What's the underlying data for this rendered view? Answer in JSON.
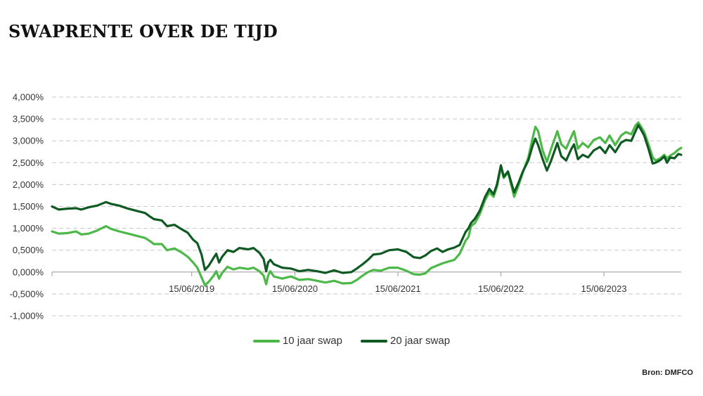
{
  "title": "SWAPRENTE OVER DE TIJD",
  "source": "Bron: DMFCO",
  "colors": {
    "series_10y": "#4cb848",
    "series_20y": "#0f5a22"
  },
  "chart_data": {
    "type": "line",
    "y_tick_labels": [
      "4,000%",
      "3,500%",
      "3,000%",
      "2,500%",
      "2,000%",
      "1,500%",
      "1,000%",
      "0,500%",
      "0,000%",
      "-0,500%",
      "-1,000%"
    ],
    "y_ticks": [
      4,
      3.5,
      3,
      2.5,
      2,
      1.5,
      1,
      0.5,
      0,
      -0.5,
      -1
    ],
    "ylim": [
      -1,
      4
    ],
    "xlim": [
      "2018-02-05",
      "2024-03-15"
    ],
    "x_ticks": [
      "2019-06-15",
      "2020-06-15",
      "2021-06-15",
      "2022-06-15",
      "2023-06-15"
    ],
    "x_tick_labels": [
      "15/06/2019",
      "15/06/2020",
      "15/06/2021",
      "15/06/2022",
      "15/06/2023"
    ],
    "grid": true,
    "legend_position": "bottom",
    "series": [
      {
        "name": "10 jaar swap",
        "points": [
          [
            "2018-02-05",
            0.93
          ],
          [
            "2018-03-01",
            0.88
          ],
          [
            "2018-04-01",
            0.89
          ],
          [
            "2018-05-01",
            0.93
          ],
          [
            "2018-05-20",
            0.86
          ],
          [
            "2018-06-15",
            0.88
          ],
          [
            "2018-07-15",
            0.95
          ],
          [
            "2018-08-15",
            1.05
          ],
          [
            "2018-09-01",
            0.99
          ],
          [
            "2018-10-01",
            0.93
          ],
          [
            "2018-11-01",
            0.88
          ],
          [
            "2018-12-01",
            0.83
          ],
          [
            "2019-01-01",
            0.78
          ],
          [
            "2019-01-20",
            0.7
          ],
          [
            "2019-02-01",
            0.64
          ],
          [
            "2019-03-01",
            0.64
          ],
          [
            "2019-03-20",
            0.5
          ],
          [
            "2019-04-15",
            0.54
          ],
          [
            "2019-05-10",
            0.45
          ],
          [
            "2019-06-01",
            0.35
          ],
          [
            "2019-06-20",
            0.22
          ],
          [
            "2019-07-05",
            0.1
          ],
          [
            "2019-07-20",
            -0.12
          ],
          [
            "2019-08-01",
            -0.3
          ],
          [
            "2019-08-15",
            -0.22
          ],
          [
            "2019-09-01",
            -0.08
          ],
          [
            "2019-09-10",
            0.02
          ],
          [
            "2019-09-20",
            -0.15
          ],
          [
            "2019-10-01",
            -0.02
          ],
          [
            "2019-10-20",
            0.12
          ],
          [
            "2019-11-10",
            0.06
          ],
          [
            "2019-12-01",
            0.1
          ],
          [
            "2020-01-01",
            0.07
          ],
          [
            "2020-01-20",
            0.1
          ],
          [
            "2020-02-10",
            0.02
          ],
          [
            "2020-02-25",
            -0.08
          ],
          [
            "2020-03-05",
            -0.28
          ],
          [
            "2020-03-12",
            -0.08
          ],
          [
            "2020-03-20",
            0.02
          ],
          [
            "2020-04-01",
            -0.1
          ],
          [
            "2020-05-01",
            -0.15
          ],
          [
            "2020-06-01",
            -0.1
          ],
          [
            "2020-07-01",
            -0.18
          ],
          [
            "2020-08-01",
            -0.16
          ],
          [
            "2020-09-01",
            -0.2
          ],
          [
            "2020-10-01",
            -0.24
          ],
          [
            "2020-11-01",
            -0.2
          ],
          [
            "2020-12-01",
            -0.26
          ],
          [
            "2021-01-01",
            -0.25
          ],
          [
            "2021-01-20",
            -0.18
          ],
          [
            "2021-02-10",
            -0.08
          ],
          [
            "2021-03-01",
            0.0
          ],
          [
            "2021-03-20",
            0.05
          ],
          [
            "2021-04-15",
            0.03
          ],
          [
            "2021-05-15",
            0.1
          ],
          [
            "2021-06-15",
            0.1
          ],
          [
            "2021-07-15",
            0.03
          ],
          [
            "2021-08-10",
            -0.05
          ],
          [
            "2021-09-01",
            -0.06
          ],
          [
            "2021-09-20",
            -0.03
          ],
          [
            "2021-10-10",
            0.09
          ],
          [
            "2021-11-01",
            0.15
          ],
          [
            "2021-11-20",
            0.2
          ],
          [
            "2021-12-10",
            0.24
          ],
          [
            "2022-01-01",
            0.28
          ],
          [
            "2022-01-20",
            0.42
          ],
          [
            "2022-02-10",
            0.72
          ],
          [
            "2022-02-20",
            0.8
          ],
          [
            "2022-03-01",
            1.05
          ],
          [
            "2022-03-15",
            1.12
          ],
          [
            "2022-04-01",
            1.32
          ],
          [
            "2022-04-20",
            1.65
          ],
          [
            "2022-05-05",
            1.82
          ],
          [
            "2022-05-20",
            1.72
          ],
          [
            "2022-06-01",
            1.95
          ],
          [
            "2022-06-15",
            2.4
          ],
          [
            "2022-06-25",
            2.15
          ],
          [
            "2022-07-10",
            2.28
          ],
          [
            "2022-08-01",
            1.72
          ],
          [
            "2022-08-15",
            1.95
          ],
          [
            "2022-09-01",
            2.28
          ],
          [
            "2022-09-20",
            2.62
          ],
          [
            "2022-10-05",
            3.05
          ],
          [
            "2022-10-15",
            3.32
          ],
          [
            "2022-10-25",
            3.22
          ],
          [
            "2022-11-10",
            2.78
          ],
          [
            "2022-11-25",
            2.52
          ],
          [
            "2022-12-10",
            2.82
          ],
          [
            "2023-01-01",
            3.22
          ],
          [
            "2023-01-15",
            2.92
          ],
          [
            "2023-02-01",
            2.82
          ],
          [
            "2023-02-20",
            3.1
          ],
          [
            "2023-03-01",
            3.22
          ],
          [
            "2023-03-15",
            2.82
          ],
          [
            "2023-04-01",
            2.95
          ],
          [
            "2023-04-20",
            2.85
          ],
          [
            "2023-05-10",
            3.02
          ],
          [
            "2023-06-01",
            3.08
          ],
          [
            "2023-06-20",
            2.95
          ],
          [
            "2023-07-05",
            3.12
          ],
          [
            "2023-07-25",
            2.9
          ],
          [
            "2023-08-15",
            3.12
          ],
          [
            "2023-09-01",
            3.2
          ],
          [
            "2023-09-20",
            3.15
          ],
          [
            "2023-10-05",
            3.35
          ],
          [
            "2023-10-15",
            3.42
          ],
          [
            "2023-10-25",
            3.32
          ],
          [
            "2023-11-05",
            3.2
          ],
          [
            "2023-11-20",
            2.92
          ],
          [
            "2023-12-05",
            2.62
          ],
          [
            "2023-12-15",
            2.55
          ],
          [
            "2024-01-01",
            2.6
          ],
          [
            "2024-01-15",
            2.68
          ],
          [
            "2024-01-25",
            2.6
          ],
          [
            "2024-02-05",
            2.66
          ],
          [
            "2024-02-20",
            2.72
          ],
          [
            "2024-03-05",
            2.8
          ],
          [
            "2024-03-15",
            2.84
          ]
        ]
      },
      {
        "name": "20 jaar swap",
        "points": [
          [
            "2018-02-05",
            1.5
          ],
          [
            "2018-03-01",
            1.43
          ],
          [
            "2018-04-01",
            1.45
          ],
          [
            "2018-05-01",
            1.46
          ],
          [
            "2018-05-20",
            1.43
          ],
          [
            "2018-06-15",
            1.48
          ],
          [
            "2018-07-15",
            1.52
          ],
          [
            "2018-08-15",
            1.6
          ],
          [
            "2018-09-01",
            1.56
          ],
          [
            "2018-10-01",
            1.52
          ],
          [
            "2018-11-01",
            1.45
          ],
          [
            "2018-12-01",
            1.4
          ],
          [
            "2019-01-01",
            1.35
          ],
          [
            "2019-01-20",
            1.26
          ],
          [
            "2019-02-01",
            1.21
          ],
          [
            "2019-03-01",
            1.18
          ],
          [
            "2019-03-20",
            1.05
          ],
          [
            "2019-04-15",
            1.08
          ],
          [
            "2019-05-10",
            0.98
          ],
          [
            "2019-06-01",
            0.9
          ],
          [
            "2019-06-20",
            0.74
          ],
          [
            "2019-07-05",
            0.66
          ],
          [
            "2019-07-20",
            0.4
          ],
          [
            "2019-08-01",
            0.05
          ],
          [
            "2019-08-15",
            0.15
          ],
          [
            "2019-09-01",
            0.33
          ],
          [
            "2019-09-10",
            0.42
          ],
          [
            "2019-09-20",
            0.22
          ],
          [
            "2019-10-01",
            0.35
          ],
          [
            "2019-10-20",
            0.5
          ],
          [
            "2019-11-10",
            0.46
          ],
          [
            "2019-12-01",
            0.55
          ],
          [
            "2020-01-01",
            0.52
          ],
          [
            "2020-01-20",
            0.55
          ],
          [
            "2020-02-10",
            0.44
          ],
          [
            "2020-02-25",
            0.3
          ],
          [
            "2020-03-05",
            0.02
          ],
          [
            "2020-03-12",
            0.22
          ],
          [
            "2020-03-20",
            0.28
          ],
          [
            "2020-04-01",
            0.18
          ],
          [
            "2020-05-01",
            0.1
          ],
          [
            "2020-06-01",
            0.08
          ],
          [
            "2020-07-01",
            0.02
          ],
          [
            "2020-08-01",
            0.05
          ],
          [
            "2020-09-01",
            0.02
          ],
          [
            "2020-10-01",
            -0.02
          ],
          [
            "2020-11-01",
            0.04
          ],
          [
            "2020-12-01",
            -0.02
          ],
          [
            "2021-01-01",
            0.0
          ],
          [
            "2021-01-20",
            0.08
          ],
          [
            "2021-02-10",
            0.18
          ],
          [
            "2021-03-01",
            0.28
          ],
          [
            "2021-03-20",
            0.4
          ],
          [
            "2021-04-15",
            0.42
          ],
          [
            "2021-05-15",
            0.5
          ],
          [
            "2021-06-15",
            0.52
          ],
          [
            "2021-07-15",
            0.46
          ],
          [
            "2021-08-10",
            0.34
          ],
          [
            "2021-09-01",
            0.32
          ],
          [
            "2021-09-20",
            0.38
          ],
          [
            "2021-10-10",
            0.48
          ],
          [
            "2021-11-01",
            0.54
          ],
          [
            "2021-11-20",
            0.46
          ],
          [
            "2021-12-10",
            0.52
          ],
          [
            "2022-01-01",
            0.56
          ],
          [
            "2022-01-20",
            0.62
          ],
          [
            "2022-02-10",
            0.92
          ],
          [
            "2022-02-20",
            1.0
          ],
          [
            "2022-03-01",
            1.12
          ],
          [
            "2022-03-15",
            1.22
          ],
          [
            "2022-04-01",
            1.4
          ],
          [
            "2022-04-20",
            1.72
          ],
          [
            "2022-05-05",
            1.9
          ],
          [
            "2022-05-20",
            1.78
          ],
          [
            "2022-06-01",
            2.0
          ],
          [
            "2022-06-15",
            2.44
          ],
          [
            "2022-06-25",
            2.18
          ],
          [
            "2022-07-10",
            2.3
          ],
          [
            "2022-08-01",
            1.82
          ],
          [
            "2022-08-15",
            2.02
          ],
          [
            "2022-09-01",
            2.3
          ],
          [
            "2022-09-20",
            2.55
          ],
          [
            "2022-10-05",
            2.88
          ],
          [
            "2022-10-15",
            3.05
          ],
          [
            "2022-10-25",
            2.9
          ],
          [
            "2022-11-10",
            2.58
          ],
          [
            "2022-11-25",
            2.32
          ],
          [
            "2022-12-10",
            2.55
          ],
          [
            "2023-01-01",
            2.95
          ],
          [
            "2023-01-15",
            2.65
          ],
          [
            "2023-02-01",
            2.55
          ],
          [
            "2023-02-20",
            2.82
          ],
          [
            "2023-03-01",
            2.92
          ],
          [
            "2023-03-15",
            2.58
          ],
          [
            "2023-04-01",
            2.68
          ],
          [
            "2023-04-20",
            2.62
          ],
          [
            "2023-05-10",
            2.78
          ],
          [
            "2023-06-01",
            2.86
          ],
          [
            "2023-06-20",
            2.72
          ],
          [
            "2023-07-05",
            2.9
          ],
          [
            "2023-07-25",
            2.74
          ],
          [
            "2023-08-15",
            2.96
          ],
          [
            "2023-09-01",
            3.02
          ],
          [
            "2023-09-20",
            3.0
          ],
          [
            "2023-10-05",
            3.22
          ],
          [
            "2023-10-15",
            3.36
          ],
          [
            "2023-10-25",
            3.25
          ],
          [
            "2023-11-05",
            3.12
          ],
          [
            "2023-11-20",
            2.82
          ],
          [
            "2023-12-05",
            2.48
          ],
          [
            "2023-12-15",
            2.5
          ],
          [
            "2024-01-01",
            2.56
          ],
          [
            "2024-01-15",
            2.64
          ],
          [
            "2024-01-25",
            2.5
          ],
          [
            "2024-02-05",
            2.62
          ],
          [
            "2024-02-20",
            2.6
          ],
          [
            "2024-03-05",
            2.7
          ],
          [
            "2024-03-15",
            2.68
          ]
        ]
      }
    ]
  }
}
